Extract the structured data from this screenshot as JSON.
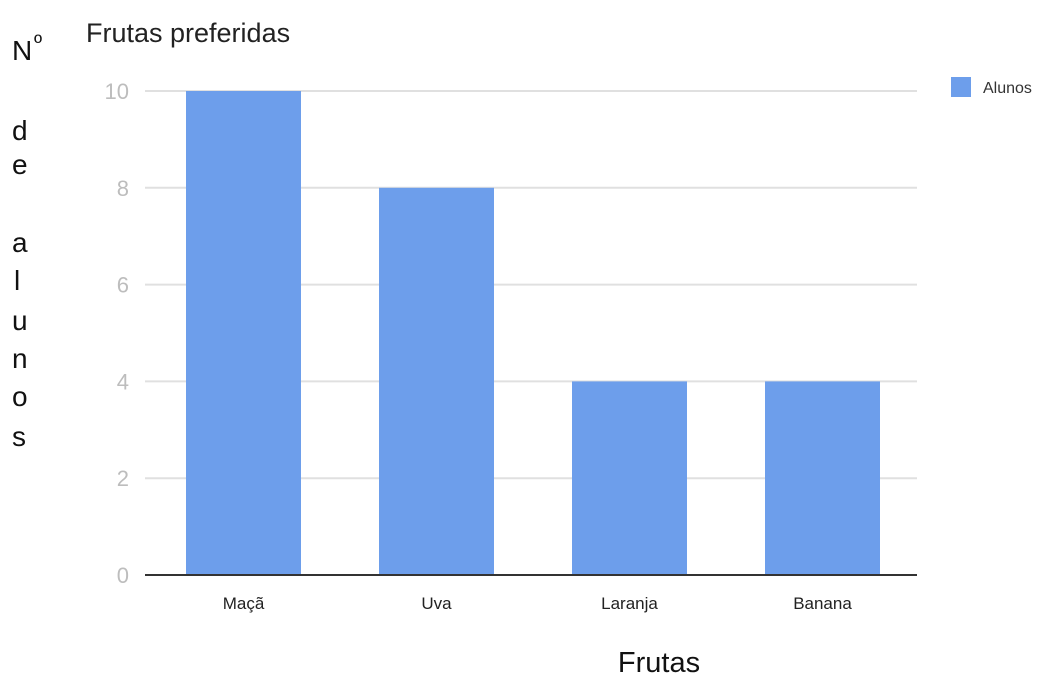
{
  "chart_data": {
    "type": "bar",
    "title": "Frutas preferidas",
    "ylabel": "Nº de alunos",
    "ylabel_glyphs": [
      "N",
      "º",
      "d",
      "e",
      "a",
      "l",
      "u",
      "n",
      "o",
      "s"
    ],
    "xlabel": "Frutas",
    "categories": [
      "Maçã",
      "Uva",
      "Laranja",
      "Banana"
    ],
    "series": [
      {
        "name": "Alunos",
        "values": [
          10,
          8,
          4,
          4
        ],
        "color": "#6d9eeb"
      }
    ],
    "ylim": [
      0,
      10
    ],
    "yticks": [
      0,
      2,
      4,
      6,
      8,
      10
    ],
    "grid": true,
    "legend_position": "top-right",
    "colors": {
      "bar": "#6d9eeb",
      "grid": "#e0e0e0",
      "axis": "#333333",
      "tick_label": "#bdbdbd"
    }
  }
}
